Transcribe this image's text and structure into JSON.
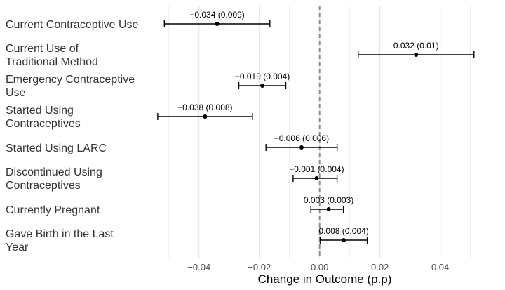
{
  "chart_data": {
    "type": "scatter",
    "subtype": "coefficient-plot-with-error-bars",
    "title": "",
    "xlabel": "Change in Outcome (p.p)",
    "ylabel": "",
    "xlim": [
      -0.056,
      0.058
    ],
    "x_ticks": [
      -0.04,
      -0.02,
      0.0,
      0.02,
      0.04
    ],
    "x_tick_labels": [
      "−0.04",
      "−0.02",
      "0.00",
      "0.02",
      "0.04"
    ],
    "reference_line": 0,
    "grid": "vertical",
    "legend": "none",
    "points": [
      {
        "label": [
          "Current Contraceptive Use"
        ],
        "estimate": -0.034,
        "ci": [
          -0.0515,
          -0.0165
        ],
        "annotation": "−0.034 (0.009)"
      },
      {
        "label": [
          "Current Use of",
          "Traditional Method"
        ],
        "estimate": 0.032,
        "ci": [
          0.0128,
          0.0512
        ],
        "annotation": "0.032 (0.01)"
      },
      {
        "label": [
          "Emergency Contraceptive",
          "Use"
        ],
        "estimate": -0.019,
        "ci": [
          -0.0268,
          -0.0112
        ],
        "annotation": "−0.019 (0.004)"
      },
      {
        "label": [
          "Started Using",
          "Contraceptives"
        ],
        "estimate": -0.038,
        "ci": [
          -0.0537,
          -0.0223
        ],
        "annotation": "−0.038 (0.008)"
      },
      {
        "label": [
          "Started Using LARC"
        ],
        "estimate": -0.006,
        "ci": [
          -0.0178,
          0.0058
        ],
        "annotation": "−0.006 (0.006)"
      },
      {
        "label": [
          "Discontinued Using",
          "Contraceptives"
        ],
        "estimate": -0.001,
        "ci": [
          -0.0088,
          0.0058
        ],
        "annotation": "−0.001 (0.004)"
      },
      {
        "label": [
          "Currently Pregnant"
        ],
        "estimate": 0.003,
        "ci": [
          -0.0029,
          0.0079
        ],
        "annotation": "0.003 (0.003)"
      },
      {
        "label": [
          "Gave Birth in the Last",
          "Year"
        ],
        "estimate": 0.008,
        "ci": [
          0.0002,
          0.0158
        ],
        "annotation": "0.008 (0.004)"
      }
    ],
    "colors": {
      "points": "#000000",
      "grid": "#e3e3e3",
      "reference": "#8c8c8c",
      "labels": "#333333"
    }
  }
}
